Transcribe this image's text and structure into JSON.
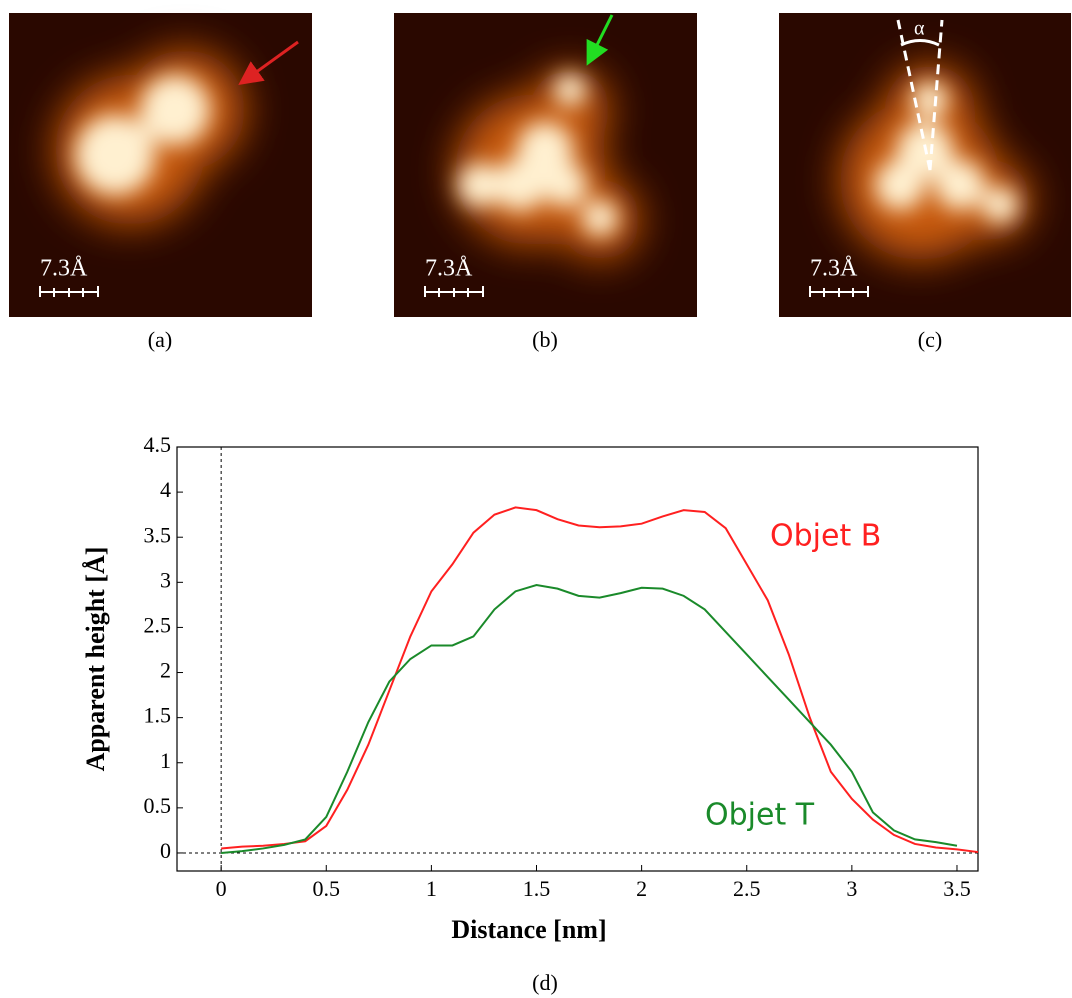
{
  "panels": [
    {
      "label": "(a)",
      "scale": "7.3Å"
    },
    {
      "label": "(b)",
      "scale": "7.3Å"
    },
    {
      "label": "(c)",
      "scale": "7.3Å",
      "angle": "α"
    }
  ],
  "chart_data": {
    "type": "line",
    "caption": "(d)",
    "x_label": "Distance [nm]",
    "y_label": "Apparent height [Å]",
    "xlim": [
      -0.21,
      3.6
    ],
    "ylim": [
      -0.2,
      4.5
    ],
    "xticks": [
      0,
      0.5,
      1,
      1.5,
      2,
      2.5,
      3,
      3.5
    ],
    "yticks": [
      0,
      0.5,
      1,
      1.5,
      2,
      2.5,
      3,
      3.5,
      4,
      4.5
    ],
    "series": [
      {
        "name": "Objet B",
        "color": "#ff2020",
        "x": [
          0,
          0.1,
          0.2,
          0.3,
          0.4,
          0.5,
          0.6,
          0.7,
          0.8,
          0.9,
          1.0,
          1.1,
          1.2,
          1.3,
          1.4,
          1.5,
          1.6,
          1.7,
          1.8,
          1.9,
          2.0,
          2.1,
          2.2,
          2.3,
          2.4,
          2.5,
          2.6,
          2.7,
          2.8,
          2.9,
          3.0,
          3.1,
          3.2,
          3.3,
          3.4,
          3.5,
          3.6
        ],
        "values": [
          0.05,
          0.07,
          0.08,
          0.1,
          0.13,
          0.3,
          0.7,
          1.2,
          1.8,
          2.4,
          2.9,
          3.2,
          3.55,
          3.75,
          3.83,
          3.8,
          3.7,
          3.63,
          3.61,
          3.62,
          3.65,
          3.73,
          3.8,
          3.78,
          3.6,
          3.2,
          2.8,
          2.2,
          1.5,
          0.9,
          0.6,
          0.37,
          0.2,
          0.1,
          0.06,
          0.04,
          0.01
        ]
      },
      {
        "name": "Objet T",
        "color": "#1a8a2a",
        "x": [
          0,
          0.1,
          0.2,
          0.3,
          0.4,
          0.5,
          0.6,
          0.7,
          0.8,
          0.9,
          1.0,
          1.1,
          1.2,
          1.3,
          1.4,
          1.5,
          1.6,
          1.7,
          1.8,
          1.9,
          2.0,
          2.1,
          2.2,
          2.3,
          2.4,
          2.5,
          2.6,
          2.7,
          2.8,
          2.9,
          3.0,
          3.1,
          3.2,
          3.3,
          3.4,
          3.5
        ],
        "values": [
          0,
          0.02,
          0.05,
          0.09,
          0.15,
          0.4,
          0.9,
          1.45,
          1.9,
          2.15,
          2.3,
          2.3,
          2.4,
          2.7,
          2.9,
          2.97,
          2.93,
          2.85,
          2.83,
          2.88,
          2.94,
          2.93,
          2.85,
          2.7,
          2.45,
          2.2,
          1.95,
          1.7,
          1.45,
          1.2,
          0.9,
          0.45,
          0.25,
          0.15,
          0.12,
          0.08
        ]
      }
    ]
  }
}
